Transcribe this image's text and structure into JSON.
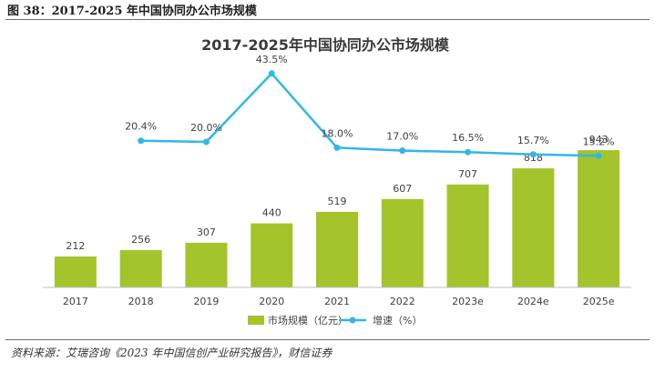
{
  "figure_caption": "图 38：2017-2025 年中国协同办公市场规模",
  "source_note": "资料来源：艾瑞咨询《2023 年中国信创产业研究报告》，财信证券",
  "colors": {
    "bar": "#a3c42b",
    "line": "#33b6e8",
    "axis": "#bfbfbf",
    "label": "#404040",
    "title": "#3a3a3a"
  },
  "chart_data": {
    "type": "bar",
    "title": "2017-2025年中国协同办公市场规模",
    "xlabel": "",
    "ylabel": "",
    "categories": [
      "2017",
      "2018",
      "2019",
      "2020",
      "2021",
      "2022",
      "2023e",
      "2024e",
      "2025e"
    ],
    "series": [
      {
        "name": "市场规模（亿元）",
        "type": "bar",
        "axis": "left",
        "values": [
          212,
          256,
          307,
          440,
          519,
          607,
          707,
          818,
          943
        ],
        "labels": [
          "212",
          "256",
          "307",
          "440",
          "519",
          "607",
          "707",
          "818",
          "943"
        ]
      },
      {
        "name": "增速（%）",
        "type": "line",
        "axis": "right",
        "values": [
          null,
          20.4,
          20.0,
          43.5,
          18.0,
          17.0,
          16.5,
          15.7,
          15.2
        ],
        "labels": [
          null,
          "20.4%",
          "20.0%",
          "43.5%",
          "18.0%",
          "17.0%",
          "16.5%",
          "15.7%",
          "15.2%"
        ]
      }
    ],
    "ylim": [
      0,
      1600
    ],
    "y2lim": [
      -30,
      50
    ],
    "grid": false,
    "legend_position": "bottom"
  }
}
